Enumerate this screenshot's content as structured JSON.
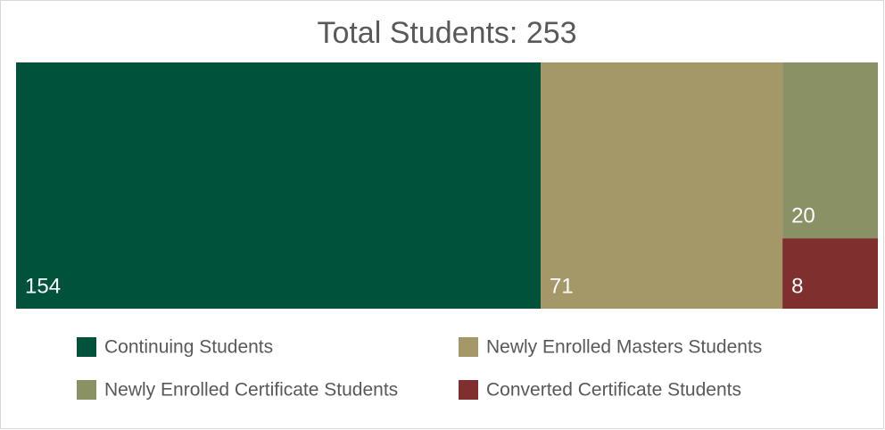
{
  "chart_data": {
    "type": "treemap",
    "title": "Total Students: 253",
    "series": [
      {
        "name": "Continuing Students",
        "color": "#00533a",
        "values": [
          154
        ]
      },
      {
        "name": "Newly Enrolled Masters Students",
        "color": "#a59868",
        "values": [
          71
        ]
      },
      {
        "name": "Newly Enrolled Certificate Students",
        "color": "#8a9164",
        "values": [
          20
        ]
      },
      {
        "name": "Converted Certificate Students",
        "color": "#7f2f2d",
        "values": [
          8
        ]
      }
    ]
  }
}
